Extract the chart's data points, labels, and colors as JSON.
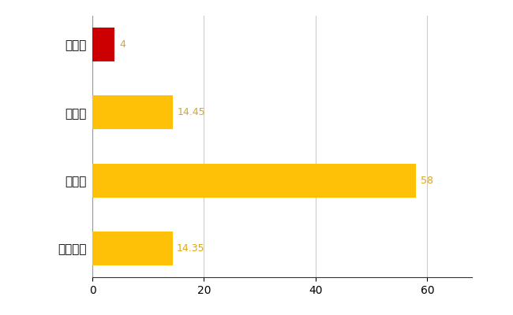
{
  "categories": [
    "明和町",
    "県平均",
    "県最大",
    "全国平均"
  ],
  "values": [
    4,
    14.45,
    58,
    14.35
  ],
  "bar_colors": [
    "#CC0000",
    "#FFC107",
    "#FFC107",
    "#FFC107"
  ],
  "value_labels": [
    "4",
    "14.45",
    "58",
    "14.35"
  ],
  "xlim": [
    0,
    68
  ],
  "xticks": [
    0,
    20,
    40,
    60
  ],
  "background_color": "#FFFFFF",
  "grid_color": "#CCCCCC",
  "label_color": "#DAA520",
  "bar_height": 0.5,
  "figwidth": 6.5,
  "figheight": 4.0,
  "dpi": 100
}
